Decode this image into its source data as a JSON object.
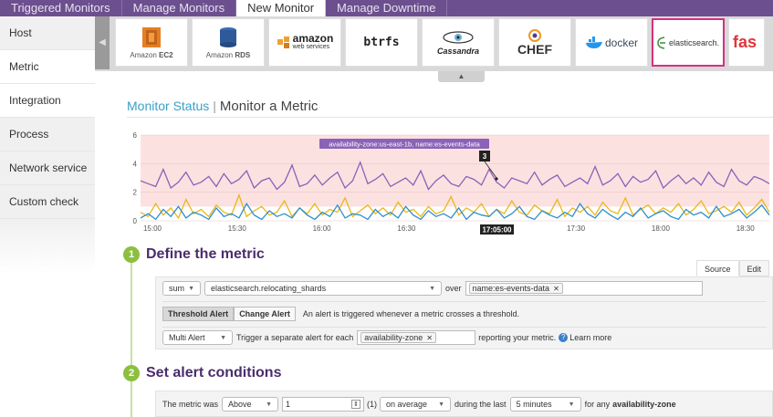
{
  "top_tabs": [
    "Triggered Monitors",
    "Manage Monitors",
    "New Monitor",
    "Manage Downtime"
  ],
  "sidebar": {
    "items": [
      "Host",
      "Metric",
      "Integration",
      "Process",
      "Network service",
      "Custom check"
    ]
  },
  "integrations": {
    "tiles": [
      {
        "name": "Amazon EC2",
        "main": "Amazon",
        "sub": "EC2"
      },
      {
        "name": "Amazon RDS",
        "main": "Amazon",
        "sub": "RDS"
      },
      {
        "name": "amazon web services",
        "main": "amazon",
        "sub": "web services"
      },
      {
        "name": "btrfs",
        "main": "btrfs"
      },
      {
        "name": "Cassandra",
        "main": "Cassandra"
      },
      {
        "name": "CHEF",
        "main": "CHEF"
      },
      {
        "name": "docker",
        "main": "docker"
      },
      {
        "name": "elasticsearch.",
        "main": "elasticsearch."
      },
      {
        "name": "fas",
        "main": "fas"
      }
    ]
  },
  "header": {
    "crumb": "Monitor Status",
    "title": "Monitor a Metric"
  },
  "chart_data": {
    "type": "line",
    "ylim": [
      0,
      6
    ],
    "y_ticks": [
      0,
      2,
      4,
      6
    ],
    "x_ticks": [
      "15:00",
      "15:30",
      "16:00",
      "16:30",
      "17:00",
      "17:30",
      "18:00",
      "18:30"
    ],
    "threshold_region": [
      1,
      6
    ],
    "tooltip": {
      "label": "availability-zone:us-east-1b, name:es-events-data",
      "value": "3",
      "time": "17:05:00"
    },
    "series": [
      {
        "color": "#8a62b8",
        "values": [
          2.8,
          2.6,
          2.4,
          3.6,
          2.3,
          2.7,
          3.4,
          2.5,
          2.7,
          3.1,
          2.4,
          3.3,
          2.6,
          2.9,
          3.5,
          2.3,
          2.8,
          3.0,
          2.2,
          2.7,
          3.9,
          2.4,
          2.6,
          3.2,
          2.5,
          3.0,
          3.4,
          2.3,
          2.8,
          4.1,
          2.6,
          2.9,
          3.3,
          2.4,
          2.7,
          3.0,
          2.5,
          3.5,
          2.2,
          2.8,
          3.2,
          2.6,
          2.4,
          3.1,
          2.9,
          2.5,
          3.6,
          2.7,
          2.3,
          3.0,
          2.8,
          2.6,
          3.4,
          2.5,
          2.9,
          3.2,
          2.4,
          2.7,
          3.0,
          2.6,
          3.8,
          2.5,
          2.8,
          3.3,
          2.4,
          3.1,
          2.7,
          2.9,
          3.5,
          2.3,
          2.8,
          3.2,
          2.6,
          3.0,
          2.5,
          3.4,
          2.7,
          2.4,
          3.6,
          2.8,
          2.5,
          3.1,
          2.9,
          2.6
        ]
      },
      {
        "color": "#e8b81a",
        "values": [
          0.6,
          0.3,
          1.2,
          0.4,
          0.9,
          0.2,
          1.5,
          0.5,
          0.8,
          0.3,
          1.1,
          0.6,
          0.4,
          1.8,
          0.3,
          0.7,
          1.0,
          0.4,
          0.6,
          1.4,
          0.3,
          0.9,
          0.5,
          1.2,
          0.4,
          0.8,
          0.6,
          1.6,
          0.3,
          0.7,
          1.1,
          0.5,
          0.9,
          0.4,
          1.3,
          0.6,
          0.8,
          0.3,
          1.0,
          0.5,
          0.7,
          1.7,
          0.4,
          0.9,
          0.6,
          1.2,
          0.3,
          0.8,
          0.5,
          1.4,
          0.6,
          0.4,
          1.1,
          0.7,
          0.5,
          1.5,
          0.3,
          0.9,
          0.6,
          1.0,
          0.4,
          1.3,
          0.7,
          0.5,
          1.6,
          0.4,
          0.8,
          1.1,
          0.5,
          0.9,
          0.6,
          1.2,
          0.4,
          0.8,
          1.4,
          0.5,
          0.7,
          1.0,
          0.6,
          1.3,
          0.4,
          0.9,
          1.5,
          0.6
        ]
      },
      {
        "color": "#2f8fcc",
        "values": [
          0.2,
          0.5,
          0.1,
          0.8,
          0.3,
          1.0,
          0.2,
          0.6,
          0.4,
          0.1,
          0.9,
          0.3,
          0.5,
          0.2,
          1.2,
          0.4,
          0.1,
          0.7,
          0.3,
          0.5,
          0.2,
          0.9,
          0.4,
          0.1,
          0.6,
          0.3,
          1.1,
          0.2,
          0.5,
          0.4,
          0.1,
          0.8,
          0.3,
          0.6,
          0.2,
          1.0,
          0.4,
          0.1,
          0.7,
          0.3,
          0.5,
          0.2,
          0.9,
          0.1,
          0.6,
          0.4,
          0.3,
          0.8,
          0.2,
          0.5,
          1.0,
          0.3,
          0.1,
          0.7,
          0.4,
          0.2,
          0.6,
          0.3,
          1.2,
          0.5,
          0.2,
          0.8,
          0.4,
          0.1,
          0.6,
          0.3,
          0.9,
          0.2,
          0.5,
          0.7,
          0.3,
          0.1,
          0.8,
          0.4,
          0.6,
          0.2,
          1.0,
          0.3,
          0.5,
          0.8,
          0.2,
          0.6,
          1.1,
          0.4
        ]
      }
    ]
  },
  "step1": {
    "number": "1",
    "title": "Define the metric",
    "tabs": [
      "Source",
      "Edit"
    ],
    "aggregator": "sum",
    "metric": "elasticsearch.relocating_shards",
    "over_label": "over",
    "over_tag": "name:es-events-data",
    "alert_types": [
      "Threshold Alert",
      "Change Alert"
    ],
    "alert_desc": "An alert is triggered whenever a metric crosses a threshold.",
    "multi_alert": "Multi Alert",
    "trigger_text": "Trigger a separate alert for each",
    "group_tag": "availability-zone",
    "reporting_text": "reporting your metric.",
    "learn_more": "Learn more"
  },
  "step2": {
    "number": "2",
    "title": "Set alert conditions",
    "lead": "The metric was",
    "comparator": "Above",
    "threshold": "1",
    "threshold_hint": "(1)",
    "aggregation": "on average",
    "during": "during the last",
    "window": "5 minutes",
    "for_any": "for any",
    "for_any_group": "availability-zone"
  }
}
